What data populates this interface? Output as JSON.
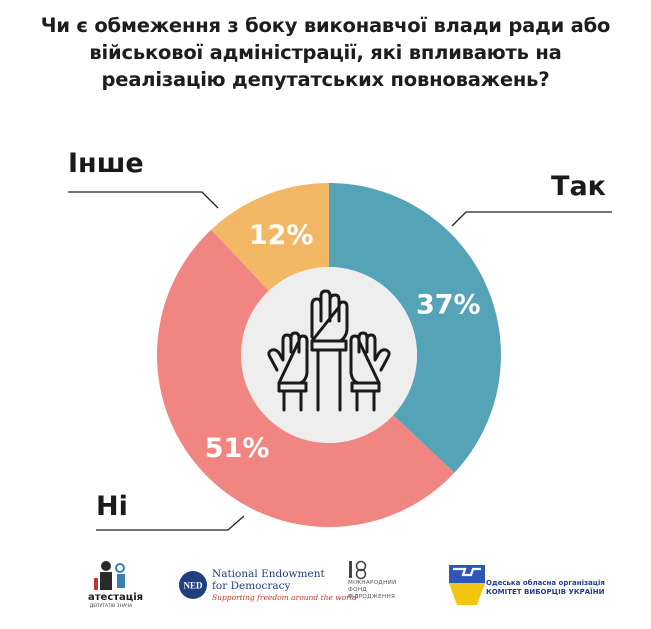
{
  "title_lines": [
    "Чи є обмеження з боку виконавчої влади ради або",
    "військової адміністрації, які впливають на",
    "реалізацію депутатських повноважень?"
  ],
  "chart_data": {
    "type": "pie",
    "variant": "donut",
    "title": "Чи є обмеження з боку виконавчої влади ради або військової адміністрації, які впливають на реалізацію депутатських повноважень?",
    "categories": [
      "Так",
      "Ні",
      "Інше"
    ],
    "values": [
      37,
      51,
      12
    ],
    "value_labels": [
      "37%",
      "51%",
      "12%"
    ],
    "colors": [
      "#55a3b6",
      "#f08582",
      "#f3b865"
    ],
    "center_icon": "raised-hands-icon"
  },
  "logos": {
    "atestatsia": {
      "name": "атестація",
      "sub": "ДЕПУТАТІВ ЗНАЧА",
      "icon": "atestatsia-logo-icon"
    },
    "ned": {
      "abbr": "NED",
      "line1": "National Endowment",
      "line2": "for Democracy",
      "tagline": "Supporting freedom around the world",
      "icon": "ned-logo-icon"
    },
    "mfv": {
      "lines": [
        "МІЖНАРОДНИЙ",
        "ФОНД",
        "ВІДРОДЖЕННЯ"
      ],
      "icon": "irf-logo-icon"
    },
    "kvu": {
      "line1": "Одеська обласна організація",
      "line2": "КОМІТЕТ ВИБОРЦІВ УКРАЇНИ",
      "icon": "kvu-logo-icon"
    }
  }
}
